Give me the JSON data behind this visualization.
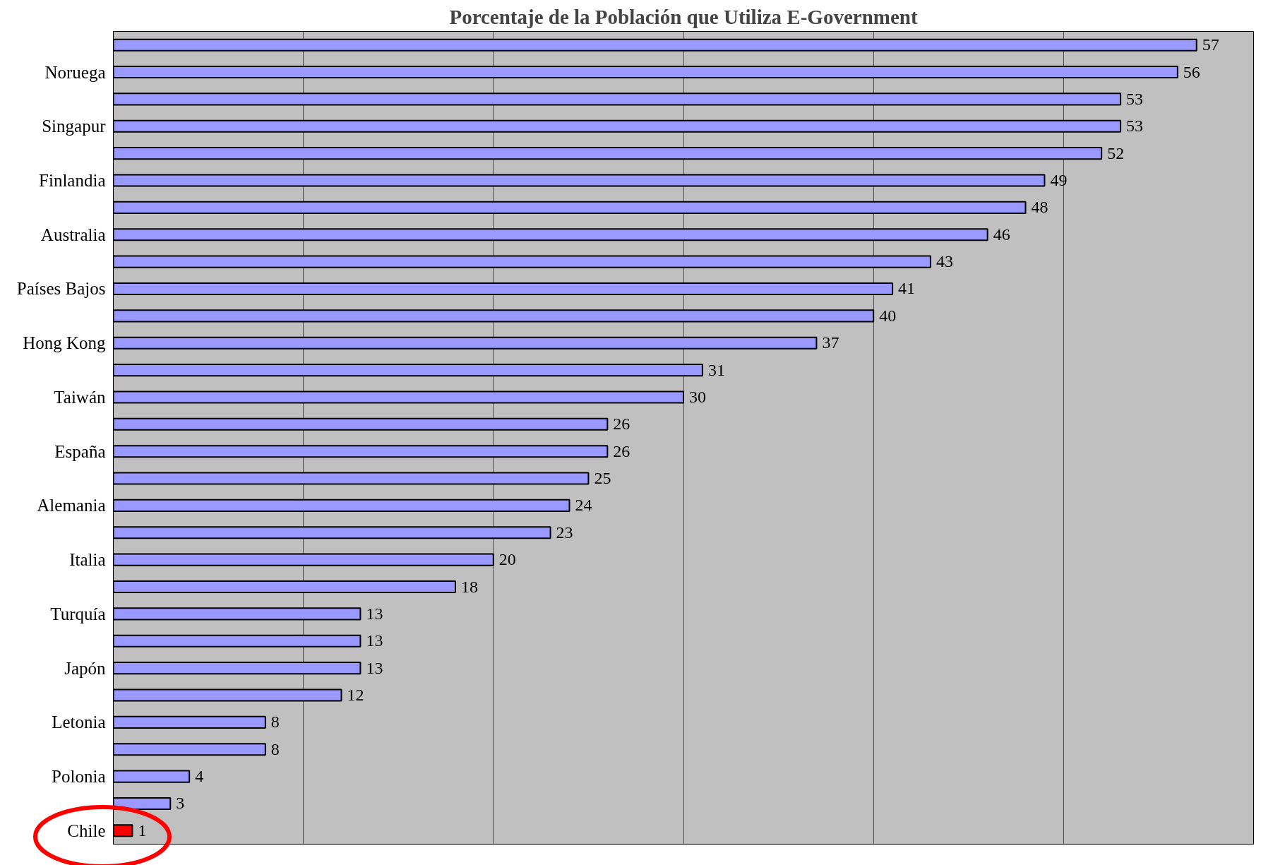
{
  "chart_data": {
    "type": "bar",
    "orientation": "horizontal",
    "title": "Porcentaje de la Población que Utiliza E-Government",
    "categories": [
      null,
      "Noruega",
      null,
      "Singapur",
      null,
      "Finlandia",
      null,
      "Australia",
      null,
      "Países Bajos",
      null,
      "Hong Kong",
      null,
      "Taiwán",
      null,
      "España",
      null,
      "Alemania",
      null,
      "Italia",
      null,
      "Turquía",
      null,
      "Japón",
      null,
      "Letonia",
      null,
      "Polonia",
      null,
      "Chile"
    ],
    "values": [
      57,
      56,
      53,
      53,
      52,
      49,
      48,
      46,
      43,
      41,
      40,
      37,
      31,
      30,
      26,
      26,
      25,
      24,
      23,
      20,
      18,
      13,
      13,
      13,
      12,
      8,
      8,
      4,
      3,
      1
    ],
    "colors": [
      "#9999ff",
      "#9999ff",
      "#9999ff",
      "#9999ff",
      "#9999ff",
      "#9999ff",
      "#9999ff",
      "#9999ff",
      "#9999ff",
      "#9999ff",
      "#9999ff",
      "#9999ff",
      "#9999ff",
      "#9999ff",
      "#9999ff",
      "#9999ff",
      "#9999ff",
      "#9999ff",
      "#9999ff",
      "#9999ff",
      "#9999ff",
      "#9999ff",
      "#9999ff",
      "#9999ff",
      "#9999ff",
      "#9999ff",
      "#9999ff",
      "#9999ff",
      "#9999ff",
      "#ff0000"
    ],
    "xlim": [
      0,
      60
    ],
    "xticks": [
      {
        "value": 0,
        "label": null
      },
      {
        "value": 10,
        "label": null
      },
      {
        "value": 20,
        "label": null
      },
      {
        "value": 30,
        "label": null
      },
      {
        "value": 40,
        "label": null
      },
      {
        "value": 50,
        "label": null
      },
      {
        "value": 60,
        "label": null
      }
    ],
    "grid": "x",
    "tick_labels": "y",
    "data_labels": true
  }
}
